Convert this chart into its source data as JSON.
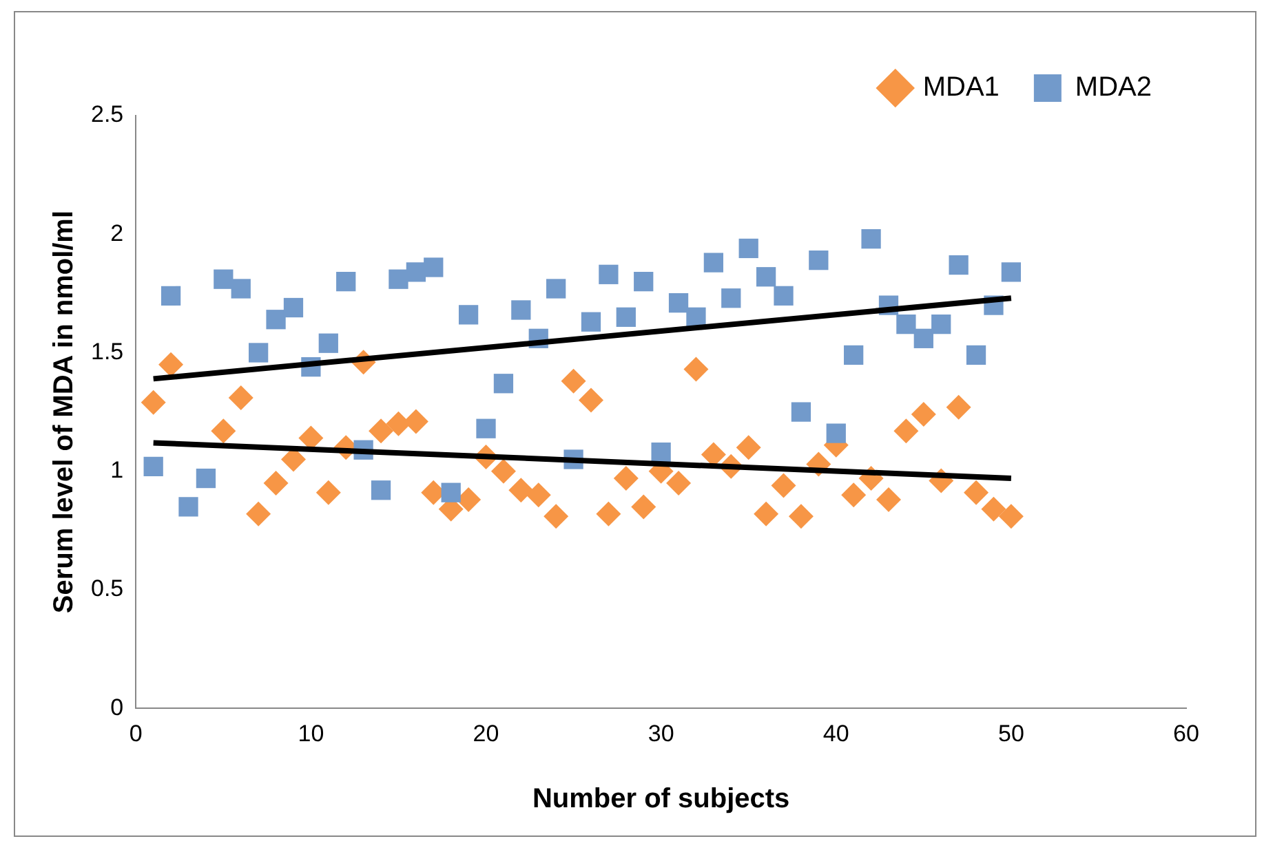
{
  "chart_data": {
    "type": "scatter",
    "xlabel": "Number of subjects",
    "ylabel": "Serum level of MDA in nmol/ml",
    "xlim": [
      0,
      60
    ],
    "xticks": [
      0,
      10,
      20,
      30,
      40,
      50,
      60
    ],
    "ylim": [
      0,
      2.5
    ],
    "yticks": [
      0,
      0.5,
      1,
      1.5,
      2,
      2.5
    ],
    "grid": false,
    "legend": "top right",
    "series": [
      {
        "name": "MDA1",
        "color": "#f79646",
        "marker": "diamond",
        "x": [
          1,
          2,
          3,
          4,
          5,
          6,
          7,
          8,
          9,
          10,
          11,
          12,
          13,
          14,
          15,
          16,
          17,
          18,
          19,
          20,
          21,
          22,
          23,
          24,
          25,
          26,
          27,
          28,
          29,
          30,
          31,
          32,
          33,
          34,
          35,
          36,
          37,
          38,
          39,
          40,
          41,
          42,
          43,
          44,
          45,
          46,
          47,
          48,
          49,
          50
        ],
        "values": [
          1.29,
          1.45,
          null,
          null,
          1.17,
          1.31,
          0.82,
          0.95,
          1.05,
          1.14,
          0.91,
          1.1,
          1.46,
          1.17,
          1.2,
          1.21,
          0.91,
          0.84,
          0.88,
          1.06,
          1.0,
          0.92,
          0.9,
          0.81,
          1.38,
          1.3,
          0.82,
          0.97,
          0.85,
          1.0,
          0.95,
          1.43,
          1.07,
          1.02,
          1.1,
          0.82,
          0.94,
          0.81,
          1.03,
          1.11,
          0.9,
          0.97,
          0.88,
          1.17,
          1.24,
          0.96,
          1.27,
          0.91,
          0.84,
          0.81
        ]
      },
      {
        "name": "MDA2",
        "color": "#729acb",
        "marker": "square",
        "x": [
          1,
          2,
          3,
          4,
          5,
          6,
          7,
          8,
          9,
          10,
          11,
          12,
          13,
          14,
          15,
          16,
          17,
          18,
          19,
          20,
          21,
          22,
          23,
          24,
          25,
          26,
          27,
          28,
          29,
          30,
          31,
          32,
          33,
          34,
          35,
          36,
          37,
          38,
          39,
          40,
          41,
          42,
          43,
          44,
          45,
          46,
          47,
          48,
          49,
          50
        ],
        "values": [
          1.02,
          1.74,
          0.85,
          0.97,
          1.81,
          1.77,
          1.5,
          1.64,
          1.69,
          1.44,
          1.54,
          1.8,
          1.09,
          0.92,
          1.81,
          1.84,
          1.86,
          0.91,
          1.66,
          1.18,
          1.37,
          1.68,
          1.56,
          1.77,
          1.05,
          1.63,
          1.83,
          1.65,
          1.8,
          1.08,
          1.71,
          1.65,
          1.88,
          1.73,
          1.94,
          1.82,
          1.74,
          1.25,
          1.89,
          1.16,
          1.49,
          1.98,
          1.7,
          1.62,
          1.56,
          1.62,
          1.87,
          1.49,
          1.7,
          1.84
        ]
      },
      {
        "type": "line",
        "color": "#000000",
        "marker": "none",
        "x": [
          1,
          50
        ],
        "values": [
          1.12,
          0.97
        ]
      },
      {
        "type": "line",
        "color": "#000000",
        "marker": "none",
        "x": [
          1,
          50
        ],
        "values": [
          1.39,
          1.73
        ]
      }
    ]
  }
}
